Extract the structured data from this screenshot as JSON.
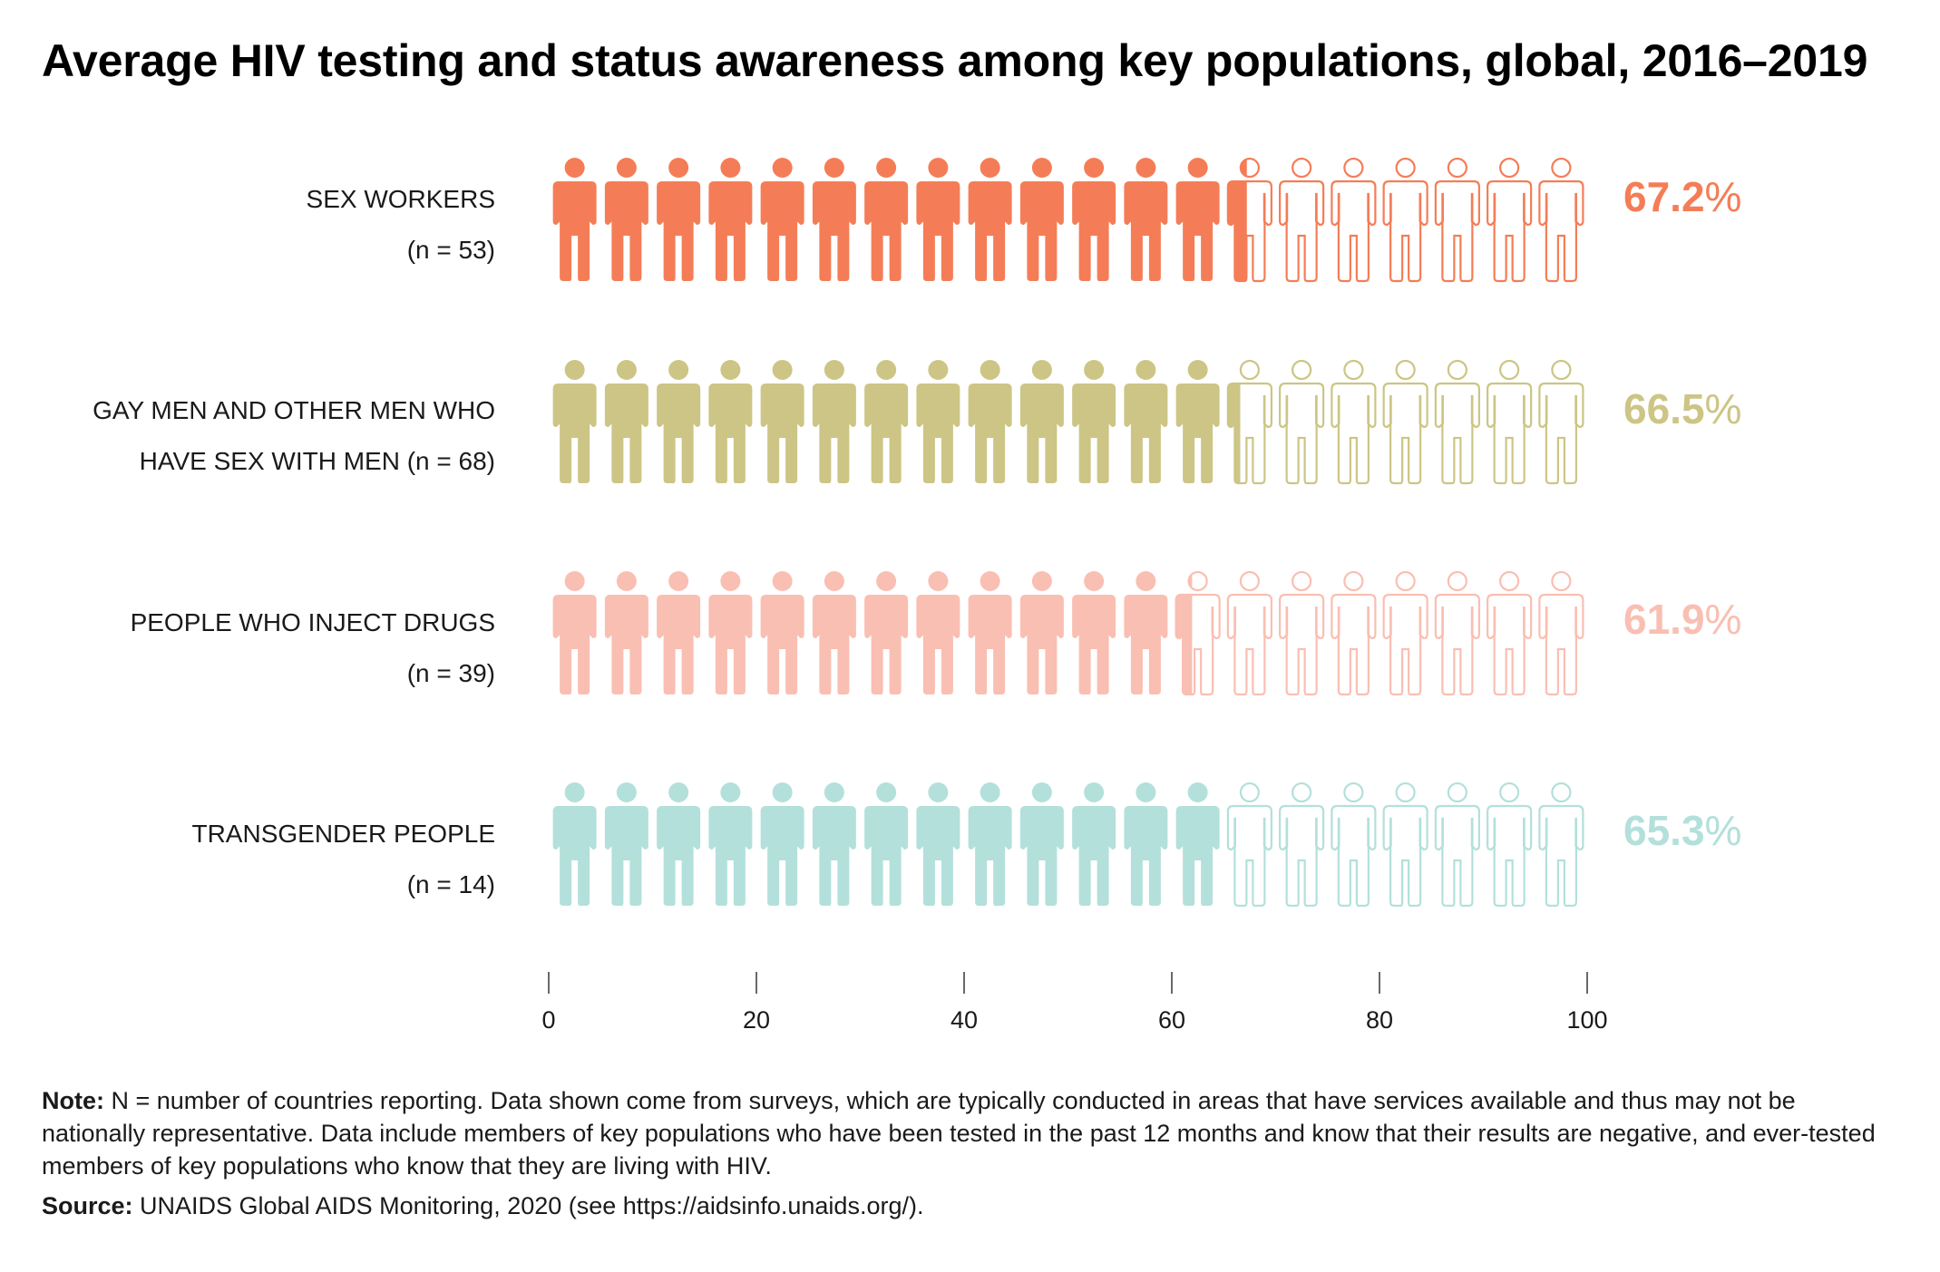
{
  "title": "Average HIV testing and status awareness among key populations, global, 2016–2019",
  "chart_data": {
    "type": "bar",
    "style": "pictogram",
    "icons_per_row": 20,
    "x_ticks": [
      0,
      20,
      40,
      60,
      80,
      100
    ],
    "xlim": [
      0,
      100
    ],
    "grid": false,
    "rows": [
      {
        "label_line1": "SEX WORKERS",
        "label_line2": "(n = 53)",
        "value": 67.2,
        "value_text": "67.2",
        "color": "#F47D57"
      },
      {
        "label_line1": "GAY MEN AND OTHER MEN WHO",
        "label_line2": "HAVE SEX WITH MEN (n = 68)",
        "value": 66.5,
        "value_text": "66.5",
        "color": "#CCC585"
      },
      {
        "label_line1": "PEOPLE WHO INJECT DRUGS",
        "label_line2": "(n = 39)",
        "value": 61.9,
        "value_text": "61.9",
        "color": "#F9BFB2"
      },
      {
        "label_line1": "TRANSGENDER PEOPLE",
        "label_line2": "(n = 14)",
        "value": 65.3,
        "value_text": "65.3",
        "color": "#B3E0DB"
      }
    ],
    "percent_sign": "%"
  },
  "note": {
    "label": "Note:",
    "text": " N = number of countries reporting. Data shown come from surveys, which are typically conducted in areas that have services available and thus may not be nationally representative. Data include members of key populations who have been tested in the past 12 months and know that their results are negative, and ever-tested members of key populations who know that they are living with HIV."
  },
  "source": {
    "label": "Source:",
    "text": " UNAIDS Global AIDS Monitoring, 2020 (see https://aidsinfo.unaids.org/)."
  }
}
